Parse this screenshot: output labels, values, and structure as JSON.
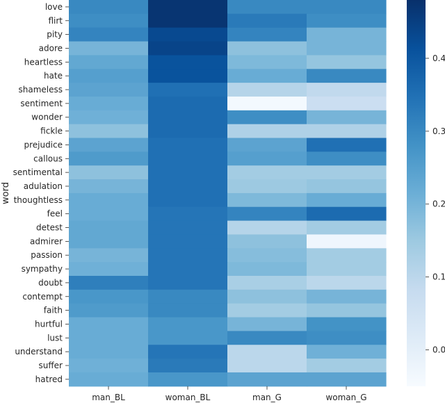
{
  "chart_data": {
    "type": "heatmap",
    "xlabel": "",
    "ylabel": "word",
    "columns": [
      "man_BL",
      "woman_BL",
      "man_G",
      "woman_G"
    ],
    "rows": [
      "love",
      "flirt",
      "pity",
      "adore",
      "heartless",
      "hate",
      "shameless",
      "sentiment",
      "wonder",
      "fickle",
      "prejudice",
      "callous",
      "sentimental",
      "adulation",
      "thoughtless",
      "feel",
      "detest",
      "admirer",
      "passion",
      "sympathy",
      "doubt",
      "contempt",
      "faith",
      "hurtful",
      "lust",
      "understand",
      "suffer",
      "hatred"
    ],
    "values": [
      [
        0.3,
        0.47,
        0.3,
        0.3
      ],
      [
        0.29,
        0.47,
        0.33,
        0.29
      ],
      [
        0.31,
        0.43,
        0.31,
        0.2
      ],
      [
        0.2,
        0.44,
        0.17,
        0.2
      ],
      [
        0.23,
        0.41,
        0.19,
        0.16
      ],
      [
        0.25,
        0.41,
        0.22,
        0.3
      ],
      [
        0.24,
        0.35,
        0.11,
        0.09
      ],
      [
        0.22,
        0.36,
        -0.04,
        0.07
      ],
      [
        0.21,
        0.36,
        0.29,
        0.2
      ],
      [
        0.17,
        0.36,
        0.12,
        0.12
      ],
      [
        0.24,
        0.35,
        0.24,
        0.35
      ],
      [
        0.26,
        0.35,
        0.25,
        0.29
      ],
      [
        0.17,
        0.35,
        0.14,
        0.14
      ],
      [
        0.2,
        0.35,
        0.15,
        0.16
      ],
      [
        0.22,
        0.35,
        0.19,
        0.22
      ],
      [
        0.22,
        0.34,
        0.31,
        0.36
      ],
      [
        0.23,
        0.34,
        0.11,
        0.14
      ],
      [
        0.23,
        0.34,
        0.17,
        -0.03
      ],
      [
        0.2,
        0.34,
        0.18,
        0.14
      ],
      [
        0.21,
        0.34,
        0.19,
        0.14
      ],
      [
        0.32,
        0.34,
        0.13,
        0.1
      ],
      [
        0.27,
        0.3,
        0.17,
        0.2
      ],
      [
        0.26,
        0.3,
        0.14,
        0.16
      ],
      [
        0.22,
        0.27,
        0.2,
        0.28
      ],
      [
        0.22,
        0.27,
        0.3,
        0.29
      ],
      [
        0.22,
        0.34,
        0.1,
        0.21
      ],
      [
        0.21,
        0.33,
        0.1,
        0.14
      ],
      [
        0.22,
        0.27,
        0.24,
        0.24
      ]
    ],
    "vmin": -0.05,
    "vmax": 0.48,
    "colorbar_ticks": [
      0.0,
      0.1,
      0.2,
      0.3,
      0.4
    ],
    "colormap": "Blues",
    "colormap_stops": [
      "#f7fbff",
      "#deebf7",
      "#c6dbef",
      "#9ecae1",
      "#6baed6",
      "#4292c6",
      "#2171b5",
      "#08519c",
      "#08306b"
    ]
  }
}
